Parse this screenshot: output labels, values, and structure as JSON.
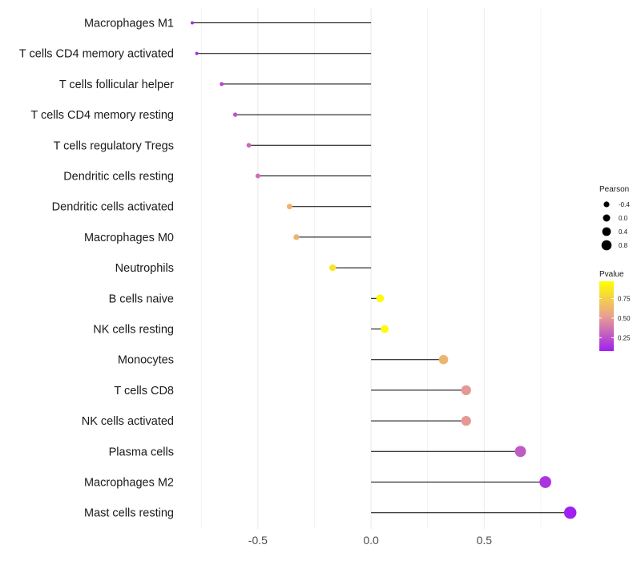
{
  "chart_data": {
    "type": "lollipop",
    "categories": [
      "Macrophages M1",
      "T cells CD4 memory activated",
      "T cells follicular helper",
      "T cells CD4 memory resting",
      "T cells regulatory  Tregs",
      "Dendritic cells resting",
      "Dendritic cells activated",
      "Macrophages M0",
      "Neutrophils",
      "B cells naive",
      "NK cells resting",
      "Monocytes",
      "T cells CD8",
      "NK cells activated",
      "Plasma cells",
      "Macrophages M2",
      "Mast cells resting"
    ],
    "values": [
      -0.79,
      -0.77,
      -0.66,
      -0.6,
      -0.54,
      -0.5,
      -0.36,
      -0.33,
      -0.17,
      0.04,
      0.06,
      0.32,
      0.42,
      0.42,
      0.66,
      0.77,
      0.88
    ],
    "pvalues": [
      0.12,
      0.14,
      0.22,
      0.26,
      0.33,
      0.36,
      0.62,
      0.62,
      0.85,
      0.95,
      0.95,
      0.62,
      0.5,
      0.5,
      0.28,
      0.15,
      0.08
    ],
    "xlim": [
      -0.85,
      0.92
    ],
    "xticks": [
      -0.5,
      0.0,
      0.5
    ],
    "xtick_labels": [
      "-0.5",
      "0.0",
      "0.5"
    ],
    "minor_xticks": [
      -0.75,
      -0.25,
      0.25,
      0.75
    ],
    "grid": true,
    "title": "",
    "xlabel": "",
    "ylabel": "",
    "legend": {
      "placement": "right",
      "size": {
        "title": "Pearson",
        "values": [
          -0.4,
          0.0,
          0.4,
          0.8
        ],
        "labels": [
          "-0.4",
          "0.0",
          "0.4",
          "0.8"
        ]
      },
      "color": {
        "title": "Pvalue",
        "min": 0.08,
        "max": 0.97,
        "ticks": [
          0.75,
          0.5,
          0.25
        ],
        "labels": [
          "0.75",
          "0.50",
          "0.25"
        ]
      }
    },
    "colors": {
      "low": "#a020f0",
      "mid": "#e8a090",
      "high": "#ffff00",
      "stem": "#000000",
      "grid": "#ebebeb"
    }
  }
}
